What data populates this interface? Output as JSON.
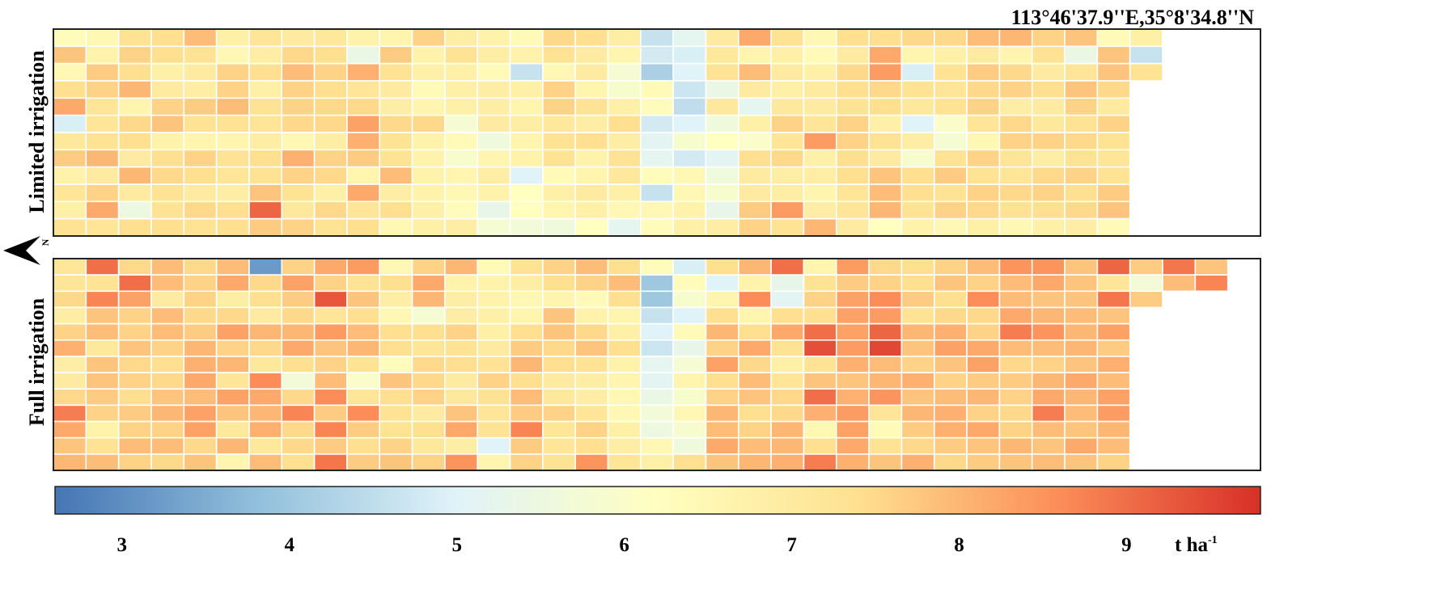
{
  "chart_data": {
    "type": "heatmap",
    "coordinate_label": "113°46'37.9''E,35°8'34.8''N",
    "north_label": "N",
    "colorbar": {
      "unit_main": "t ha",
      "unit_sup": "-1",
      "range": [
        2.6,
        9.8
      ],
      "ticks": [
        3,
        4,
        5,
        6,
        7,
        8,
        9
      ],
      "tick_labels": [
        "3",
        "4",
        "5",
        "6",
        "7",
        "8",
        "9"
      ],
      "colors": [
        "#4575b4",
        "#91bfdb",
        "#e0f3f8",
        "#ffffbf",
        "#fee090",
        "#fc8d59",
        "#d73027"
      ]
    },
    "panels": [
      {
        "label": "Limited irrigation",
        "values": [
          [
            6.3,
            6.5,
            7.3,
            7.4,
            7.9,
            6.8,
            7.2,
            7.0,
            7.1,
            6.7,
            6.6,
            7.6,
            6.9,
            6.7,
            6.4,
            7.5,
            7.4,
            6.9,
            4.6,
            5.2,
            7.0,
            8.2,
            7.3,
            6.5,
            7.4,
            7.4,
            7.5,
            7.5,
            7.9,
            8.0,
            7.6,
            7.8,
            6.4,
            6.8
          ],
          [
            7.8,
            6.7,
            7.6,
            7.4,
            7.3,
            6.5,
            6.9,
            7.5,
            7.4,
            5.4,
            7.7,
            6.7,
            7.3,
            6.9,
            6.7,
            7.3,
            7.0,
            6.6,
            4.8,
            4.9,
            7.1,
            6.6,
            6.8,
            6.4,
            7.0,
            8.2,
            6.6,
            6.8,
            7.0,
            6.6,
            7.3,
            5.4,
            7.8,
            4.6
          ],
          [
            6.5,
            7.7,
            7.4,
            6.8,
            7.0,
            7.6,
            7.4,
            7.9,
            7.6,
            8.1,
            7.3,
            6.8,
            6.8,
            6.4,
            4.6,
            6.5,
            7.0,
            5.8,
            4.2,
            5.0,
            7.3,
            7.9,
            7.0,
            6.8,
            7.5,
            8.4,
            4.9,
            7.3,
            7.7,
            7.5,
            7.0,
            7.2,
            7.8,
            7.3
          ],
          [
            7.4,
            7.6,
            8.0,
            7.0,
            6.9,
            7.6,
            6.8,
            7.6,
            7.4,
            7.2,
            7.0,
            6.4,
            6.8,
            6.9,
            6.8,
            7.6,
            6.6,
            5.9,
            6.4,
            4.7,
            5.4,
            7.0,
            6.8,
            7.0,
            7.4,
            7.5,
            7.3,
            7.2,
            7.5,
            7.6,
            7.4,
            7.8,
            7.5
          ],
          [
            8.2,
            7.2,
            6.6,
            7.6,
            7.7,
            7.9,
            7.3,
            7.6,
            7.5,
            7.5,
            6.9,
            6.6,
            6.8,
            6.9,
            6.6,
            7.6,
            7.3,
            6.8,
            6.3,
            4.5,
            7.1,
            5.2,
            7.1,
            7.0,
            7.3,
            7.4,
            7.1,
            7.3,
            7.6,
            6.9,
            7.0,
            7.6,
            7.0
          ],
          [
            4.9,
            7.2,
            7.5,
            7.8,
            7.3,
            7.3,
            7.2,
            7.5,
            7.5,
            8.3,
            7.5,
            7.5,
            5.8,
            7.0,
            6.9,
            7.1,
            6.9,
            7.4,
            4.8,
            5.0,
            5.6,
            6.8,
            7.6,
            7.2,
            7.6,
            6.8,
            5.0,
            6.0,
            7.2,
            7.5,
            7.1,
            7.3,
            7.6
          ],
          [
            7.1,
            7.3,
            7.4,
            6.7,
            6.6,
            6.6,
            6.9,
            6.5,
            6.9,
            8.1,
            7.3,
            6.7,
            6.4,
            5.6,
            6.6,
            7.3,
            7.4,
            6.9,
            5.1,
            5.9,
            6.2,
            6.0,
            7.2,
            8.4,
            7.6,
            7.3,
            6.9,
            5.8,
            6.5,
            7.6,
            7.6,
            7.5,
            7.3
          ],
          [
            7.7,
            8.0,
            7.0,
            7.4,
            7.6,
            7.3,
            7.4,
            8.1,
            7.6,
            7.7,
            7.3,
            6.7,
            5.9,
            6.6,
            6.7,
            7.3,
            6.7,
            7.3,
            5.2,
            4.8,
            5.1,
            7.4,
            7.5,
            6.8,
            7.4,
            7.0,
            5.9,
            7.3,
            7.6,
            7.2,
            6.9,
            7.3,
            7.2
          ],
          [
            6.7,
            7.0,
            8.0,
            7.5,
            7.4,
            7.2,
            7.3,
            7.6,
            7.5,
            6.6,
            7.9,
            6.7,
            6.6,
            6.9,
            5.0,
            6.4,
            6.6,
            7.1,
            6.3,
            6.5,
            5.6,
            7.0,
            6.9,
            6.9,
            7.4,
            7.8,
            7.4,
            7.7,
            7.3,
            7.2,
            7.5,
            7.6,
            7.3
          ],
          [
            7.2,
            7.6,
            7.0,
            7.3,
            7.0,
            6.9,
            7.8,
            7.3,
            6.8,
            8.2,
            6.9,
            6.7,
            6.5,
            6.7,
            6.2,
            6.8,
            7.0,
            6.8,
            4.6,
            6.5,
            5.9,
            7.0,
            6.9,
            6.6,
            7.2,
            7.9,
            7.4,
            7.3,
            7.6,
            7.5,
            7.6,
            7.4,
            7.7
          ],
          [
            6.8,
            8.2,
            5.5,
            7.3,
            7.5,
            7.4,
            9.1,
            7.1,
            7.5,
            7.2,
            7.4,
            6.8,
            6.3,
            5.3,
            6.2,
            6.6,
            6.8,
            6.5,
            6.5,
            6.7,
            5.3,
            7.7,
            8.4,
            6.9,
            7.2,
            8.0,
            7.3,
            7.6,
            7.5,
            7.3,
            7.4,
            7.5,
            7.8
          ],
          [
            7.3,
            7.2,
            7.4,
            7.4,
            7.3,
            7.4,
            7.7,
            7.6,
            7.3,
            7.4,
            6.5,
            6.8,
            6.9,
            5.8,
            5.7,
            5.6,
            6.2,
            5.2,
            6.3,
            6.8,
            6.9,
            7.6,
            7.3,
            8.0,
            7.0,
            6.2,
            6.7,
            6.5,
            6.8,
            6.5,
            6.8,
            6.9,
            6.4
          ]
        ]
      },
      {
        "label": "Full irrigation",
        "values": [
          [
            7.2,
            9.0,
            7.5,
            7.9,
            7.5,
            7.9,
            3.2,
            7.6,
            8.2,
            8.4,
            6.5,
            7.6,
            8.0,
            6.4,
            7.3,
            7.6,
            7.9,
            7.4,
            6.3,
            4.9,
            7.4,
            8.0,
            9.0,
            6.6,
            8.4,
            7.5,
            7.4,
            7.6,
            7.9,
            8.5,
            8.5,
            7.8,
            9.1,
            7.7,
            8.9,
            7.8
          ],
          [
            7.2,
            7.3,
            9.0,
            7.9,
            7.6,
            8.2,
            7.5,
            8.3,
            7.6,
            7.3,
            7.4,
            8.2,
            6.7,
            6.7,
            6.9,
            7.4,
            7.6,
            7.9,
            4.0,
            6.3,
            5.0,
            6.7,
            5.3,
            7.3,
            7.7,
            7.6,
            7.4,
            7.8,
            7.6,
            7.9,
            8.2,
            7.8,
            7.2,
            5.7,
            7.9,
            8.7
          ],
          [
            7.5,
            8.7,
            8.3,
            7.0,
            7.6,
            6.9,
            7.4,
            7.7,
            9.3,
            7.8,
            6.9,
            8.0,
            6.9,
            6.7,
            6.5,
            6.6,
            6.4,
            7.4,
            4.0,
            5.9,
            6.6,
            8.6,
            5.1,
            7.6,
            8.3,
            8.6,
            7.7,
            7.4,
            8.6,
            7.9,
            7.8,
            7.8,
            8.9,
            7.7
          ],
          [
            6.9,
            7.8,
            7.6,
            7.9,
            7.5,
            7.5,
            7.0,
            7.5,
            7.2,
            7.4,
            6.5,
            5.8,
            6.9,
            6.8,
            6.6,
            7.8,
            6.7,
            6.6,
            4.6,
            5.0,
            7.4,
            6.6,
            7.4,
            7.4,
            8.3,
            8.4,
            7.3,
            7.5,
            7.5,
            8.2,
            8.0,
            7.9,
            7.8
          ],
          [
            7.6,
            7.9,
            7.6,
            7.9,
            7.7,
            8.3,
            8.0,
            8.0,
            8.4,
            7.9,
            7.4,
            7.4,
            7.6,
            6.8,
            7.4,
            7.8,
            7.5,
            6.8,
            5.0,
            6.4,
            8.0,
            7.4,
            8.2,
            9.0,
            8.3,
            9.1,
            8.0,
            8.1,
            7.6,
            8.8,
            8.5,
            8.0,
            8.3
          ],
          [
            8.1,
            7.1,
            7.8,
            7.6,
            8.0,
            7.6,
            7.5,
            8.2,
            7.8,
            8.0,
            7.4,
            7.2,
            7.3,
            7.0,
            7.7,
            7.5,
            7.8,
            7.4,
            4.7,
            5.3,
            7.6,
            8.2,
            7.3,
            9.4,
            8.4,
            9.5,
            7.8,
            8.3,
            8.2,
            7.9,
            7.9,
            8.0,
            7.7
          ],
          [
            6.9,
            7.8,
            7.5,
            7.4,
            8.1,
            8.0,
            7.1,
            7.4,
            7.6,
            7.3,
            6.3,
            7.5,
            7.4,
            7.3,
            8.0,
            7.4,
            7.3,
            6.7,
            5.2,
            5.8,
            8.3,
            7.5,
            6.8,
            7.3,
            8.1,
            7.9,
            7.6,
            7.8,
            8.3,
            7.5,
            7.6,
            7.8,
            8.1
          ],
          [
            7.0,
            7.8,
            7.6,
            7.5,
            8.2,
            7.2,
            8.6,
            5.7,
            7.9,
            6.0,
            7.8,
            7.5,
            7.0,
            7.6,
            7.4,
            7.0,
            6.9,
            6.6,
            5.1,
            6.6,
            7.4,
            7.9,
            7.2,
            7.8,
            7.8,
            8.0,
            8.1,
            7.6,
            7.7,
            7.7,
            8.0,
            8.2,
            7.9
          ],
          [
            7.5,
            7.7,
            7.4,
            7.8,
            7.9,
            8.3,
            8.2,
            7.5,
            8.6,
            7.2,
            7.4,
            7.6,
            7.1,
            7.3,
            7.9,
            7.1,
            6.9,
            6.5,
            5.4,
            5.9,
            7.6,
            7.8,
            7.5,
            9.0,
            8.1,
            8.5,
            7.8,
            7.9,
            8.0,
            7.6,
            8.2,
            8.0,
            8.3
          ],
          [
            8.8,
            7.6,
            7.7,
            8.0,
            8.3,
            7.8,
            8.0,
            8.7,
            7.7,
            8.6,
            7.3,
            7.0,
            7.8,
            7.2,
            7.7,
            7.6,
            7.2,
            6.5,
            5.7,
            6.5,
            8.0,
            7.4,
            7.5,
            8.1,
            8.4,
            7.2,
            8.0,
            8.1,
            7.6,
            7.5,
            8.8,
            7.9,
            8.4
          ],
          [
            8.2,
            6.7,
            7.6,
            7.6,
            8.3,
            7.1,
            8.1,
            7.5,
            8.7,
            7.7,
            7.3,
            7.4,
            8.2,
            7.3,
            8.7,
            7.2,
            7.6,
            6.8,
            5.5,
            5.9,
            7.9,
            7.6,
            8.0,
            6.5,
            8.3,
            6.4,
            7.7,
            8.1,
            8.2,
            7.6,
            7.9,
            7.8,
            8.0
          ],
          [
            7.8,
            7.3,
            7.9,
            7.9,
            7.5,
            8.0,
            7.1,
            7.5,
            7.7,
            7.4,
            7.6,
            7.1,
            6.9,
            5.0,
            7.7,
            7.2,
            7.4,
            6.9,
            6.5,
            5.6,
            8.2,
            7.9,
            8.0,
            7.4,
            8.2,
            7.3,
            7.5,
            7.7,
            7.8,
            8.0,
            7.8,
            8.2,
            7.9
          ],
          [
            8.0,
            7.9,
            7.6,
            7.5,
            7.8,
            6.6,
            7.9,
            7.4,
            8.9,
            7.7,
            7.8,
            7.6,
            8.5,
            6.6,
            7.6,
            7.3,
            8.5,
            7.2,
            6.8,
            7.4,
            7.8,
            8.0,
            8.1,
            8.8,
            8.1,
            7.8,
            8.1,
            7.5,
            7.7,
            7.8,
            7.9,
            7.8,
            7.6
          ]
        ]
      }
    ]
  }
}
